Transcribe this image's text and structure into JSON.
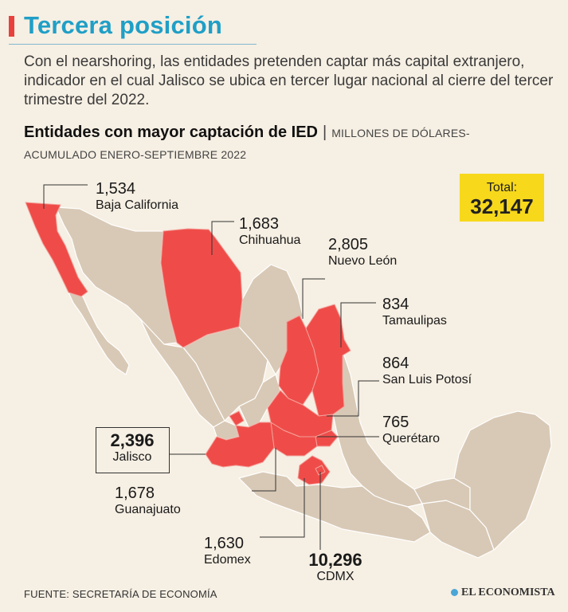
{
  "header": {
    "title": "Tercera posición",
    "intro": "Con el nearshoring, las entidades pretenden captar más capital extranjero, indicador en el cual Jalisco se ubica en tercer lugar nacional al cierre del tercer trimestre del 2022.",
    "subtitle_bold": "Entidades con mayor captación de IED",
    "subtitle_sep": "|",
    "subtitle_units": "MILLONES DE DÓLARES- ACUMULADO ENERO-SEPTIEMBRE 2022"
  },
  "total": {
    "label": "Total:",
    "value": "32,147"
  },
  "states": [
    {
      "name": "Baja California",
      "value": "1,534"
    },
    {
      "name": "Chihuahua",
      "value": "1,683"
    },
    {
      "name": "Nuevo León",
      "value": "2,805"
    },
    {
      "name": "Tamaulipas",
      "value": "834"
    },
    {
      "name": "San Luis Potosí",
      "value": "864"
    },
    {
      "name": "Querétaro",
      "value": "765"
    },
    {
      "name": "Jalisco",
      "value": "2,396"
    },
    {
      "name": "Guanajuato",
      "value": "1,678"
    },
    {
      "name": "Edomex",
      "value": "1,630"
    },
    {
      "name": "CDMX",
      "value": "10,296"
    }
  ],
  "colors": {
    "highlight": "#ef4c49",
    "land": "#d8c9b6",
    "accent_title": "#1f9fc7",
    "total_bg": "#f7d81b",
    "background": "#f6efe3"
  },
  "footer": {
    "source": "FUENTE: SECRETARÍA DE ECONOMÍA",
    "brand": "EL ECONOMISTA"
  }
}
